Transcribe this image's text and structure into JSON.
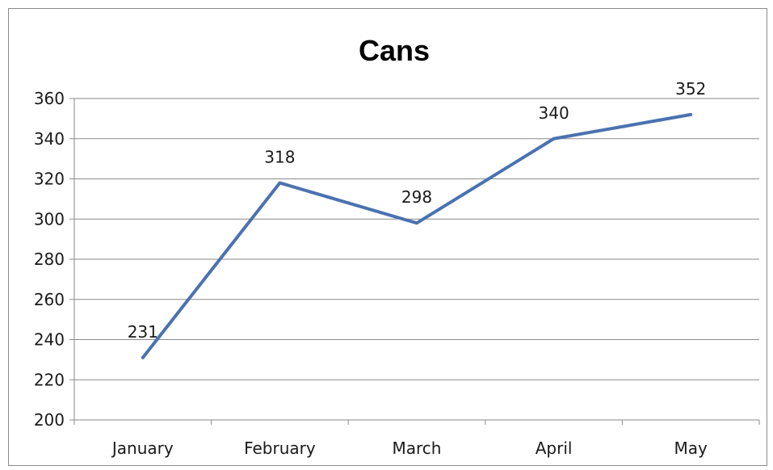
{
  "chart_data": {
    "type": "line",
    "title": "Cans",
    "xlabel": "",
    "ylabel": "",
    "categories": [
      "January",
      "February",
      "March",
      "April",
      "May"
    ],
    "series": [
      {
        "values": [
          231,
          318,
          298,
          340,
          352
        ],
        "color": "#4a72b0"
      }
    ],
    "ylim": [
      200,
      360
    ],
    "yticks": [
      200,
      220,
      240,
      260,
      280,
      300,
      320,
      340,
      360
    ],
    "grid": true,
    "legend": "none",
    "data_labels": true
  }
}
